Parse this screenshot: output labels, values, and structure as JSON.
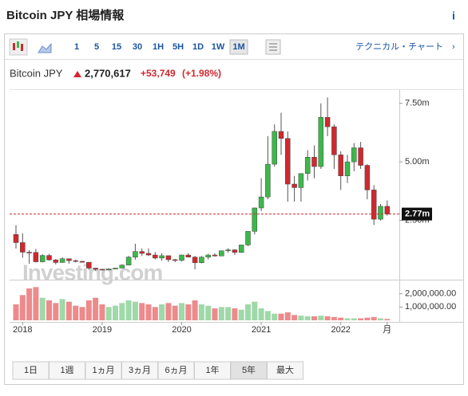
{
  "header": {
    "title": "Bitcoin JPY 相場情報",
    "info": "i"
  },
  "toolbar": {
    "intervals": [
      "1",
      "5",
      "15",
      "30",
      "1H",
      "5H",
      "1D",
      "1W",
      "1M"
    ],
    "active": "1M",
    "technical": "テクニカル・チャート"
  },
  "quote": {
    "name": "Bitcoin JPY",
    "price": "2,770,617",
    "change": "+53,749",
    "percent": "(+1.98%)"
  },
  "watermark": "Investing.com",
  "chart_data": {
    "type": "candlestick",
    "categories": [
      null,
      "2018",
      null,
      null,
      null,
      null,
      null,
      null,
      null,
      null,
      null,
      null,
      null,
      "2019",
      null,
      null,
      null,
      null,
      null,
      null,
      null,
      null,
      null,
      null,
      null,
      "2020",
      null,
      null,
      null,
      null,
      null,
      null,
      null,
      null,
      null,
      null,
      null,
      "2021",
      null,
      null,
      null,
      null,
      null,
      null,
      null,
      null,
      null,
      null,
      null,
      "2022",
      null,
      null,
      null,
      null,
      null,
      null,
      "月"
    ],
    "open": [
      1.9,
      1.55,
      1.14,
      1.13,
      0.73,
      1.0,
      0.81,
      0.7,
      0.86,
      0.78,
      0.75,
      0.71,
      0.46,
      0.41,
      0.38,
      0.42,
      0.46,
      0.59,
      0.93,
      1.17,
      1.09,
      1.02,
      0.89,
      0.99,
      0.82,
      0.79,
      1.02,
      0.93,
      0.69,
      0.93,
      1.02,
      0.98,
      1.2,
      1.24,
      1.13,
      1.45,
      2.03,
      3.03,
      3.5,
      4.9,
      6.3,
      6.0,
      4.05,
      3.9,
      4.5,
      5.2,
      4.8,
      6.9,
      6.5,
      5.3,
      4.4,
      5.0,
      5.6,
      4.85,
      3.8,
      2.55,
      3.1
    ],
    "high": [
      2.3,
      1.95,
      1.23,
      1.28,
      1.05,
      1.07,
      0.85,
      0.92,
      0.87,
      0.82,
      0.77,
      0.72,
      0.46,
      0.43,
      0.45,
      0.47,
      0.62,
      0.98,
      1.5,
      1.3,
      1.3,
      1.15,
      1.1,
      1.0,
      0.85,
      1.03,
      1.1,
      0.98,
      0.97,
      1.07,
      1.09,
      1.21,
      1.31,
      1.27,
      1.46,
      2.03,
      3.05,
      4.3,
      6.1,
      6.6,
      7.1,
      6.3,
      4.4,
      4.5,
      5.5,
      5.7,
      7.5,
      7.75,
      6.6,
      5.45,
      5.3,
      5.8,
      5.85,
      4.9,
      4.0,
      3.2,
      3.35
    ],
    "low": [
      1.3,
      0.9,
      0.65,
      0.7,
      0.7,
      0.78,
      0.62,
      0.69,
      0.65,
      0.7,
      0.7,
      0.4,
      0.34,
      0.37,
      0.37,
      0.41,
      0.45,
      0.58,
      0.82,
      0.98,
      0.98,
      0.83,
      0.78,
      0.72,
      0.71,
      0.75,
      0.92,
      0.41,
      0.66,
      0.83,
      0.95,
      0.97,
      1.12,
      1.03,
      1.11,
      1.4,
      1.9,
      2.9,
      3.4,
      4.8,
      5.3,
      3.3,
      3.3,
      3.3,
      4.2,
      4.3,
      4.7,
      6.1,
      4.7,
      3.8,
      4.1,
      4.6,
      4.7,
      3.4,
      2.3,
      2.5,
      2.7
    ],
    "close": [
      1.55,
      1.14,
      1.13,
      0.73,
      1.0,
      0.81,
      0.7,
      0.86,
      0.78,
      0.75,
      0.71,
      0.46,
      0.41,
      0.38,
      0.42,
      0.46,
      0.59,
      0.93,
      1.17,
      1.09,
      1.02,
      0.89,
      0.99,
      0.82,
      0.79,
      1.02,
      0.93,
      0.69,
      0.93,
      1.02,
      0.98,
      1.2,
      1.24,
      1.13,
      1.45,
      2.03,
      3.03,
      3.5,
      4.9,
      6.3,
      6.0,
      4.05,
      3.9,
      4.5,
      5.2,
      4.8,
      6.9,
      6.5,
      5.3,
      4.4,
      5.0,
      5.6,
      4.85,
      3.8,
      2.55,
      3.1,
      2.77
    ],
    "volume": [
      1200000,
      1900000,
      2400000,
      2500000,
      1700000,
      1500000,
      1300000,
      1600000,
      1400000,
      1100000,
      1000000,
      1500000,
      1700000,
      1200000,
      1000000,
      1100000,
      1300000,
      1500000,
      1400000,
      1300000,
      1200000,
      1000000,
      1200000,
      1300000,
      1100000,
      1300000,
      1200000,
      1500000,
      1200000,
      1100000,
      900000,
      1000000,
      1000000,
      900000,
      800000,
      1200000,
      1400000,
      900000,
      700000,
      500000,
      500000,
      600000,
      400000,
      350000,
      300000,
      300000,
      350000,
      300000,
      250000,
      200000,
      150000,
      150000,
      150000,
      200000,
      250000,
      150000,
      100000
    ],
    "ylim": [
      0,
      8
    ],
    "yticks": [
      {
        "value": 7.5,
        "label": "7.50m"
      },
      {
        "value": 5,
        "label": "5.00m"
      },
      {
        "value": 2.5,
        "label": "2.50m"
      }
    ],
    "volume_ylim": [
      0,
      3000000
    ],
    "volume_yticks": [
      {
        "value": 2000000,
        "label": "2,000,000.00"
      },
      {
        "value": 1000000,
        "label": "1,000,000.00"
      }
    ],
    "last_price": {
      "value": 2.77,
      "label": "2.77m"
    },
    "up_color": "#3cb84a",
    "down_color": "#d0282e",
    "up_volume_color": "#9fd8a9",
    "down_volume_color": "#ec8a8c"
  },
  "ranges": {
    "buttons": [
      "1日",
      "1週",
      "1ヵ月",
      "3ヵ月",
      "6ヵ月",
      "1年",
      "5年",
      "最大"
    ],
    "active": "5年"
  }
}
